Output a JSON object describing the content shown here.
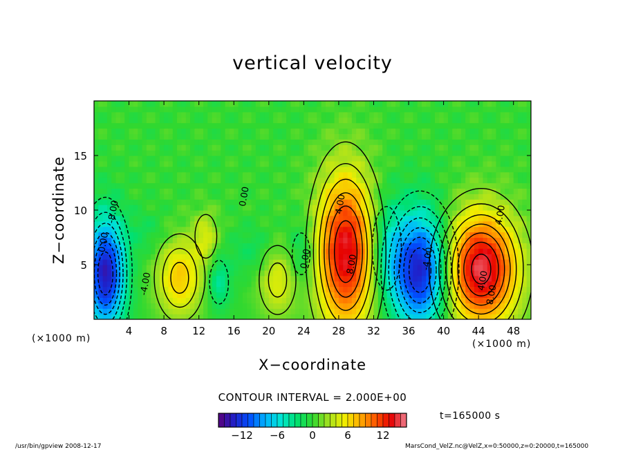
{
  "chart_data": {
    "type": "heatmap",
    "title": "vertical velocity",
    "xlabel": "X−coordinate",
    "ylabel": "Z−coordinate",
    "x_unit_label": "(×1000 m)",
    "x_ticks": [
      4,
      8,
      12,
      16,
      20,
      24,
      28,
      32,
      36,
      40,
      44,
      48
    ],
    "y_ticks": [
      5,
      10,
      15
    ],
    "xlim": [
      0,
      50
    ],
    "ylim": [
      0,
      20
    ],
    "contour_interval_text": "CONTOUR INTERVAL = 2.000E+00",
    "contour_labels": [
      "0.00",
      "0.00",
      "0.00",
      "4.00",
      "4.00",
      "4.00",
      "8.00",
      "8.00",
      "-4.00",
      "-8.00",
      "-4.00"
    ],
    "colorbar": {
      "range": [
        -16,
        16
      ],
      "ticks": [
        -12,
        -6,
        0,
        6,
        12
      ],
      "colors": [
        "#5a007a",
        "#2020c8",
        "#0050ff",
        "#00b4ff",
        "#00e6d2",
        "#00e070",
        "#30d830",
        "#a0e020",
        "#f0f000",
        "#ffb000",
        "#ff5a00",
        "#e60000",
        "#f08090"
      ]
    },
    "cells": [
      {
        "x": 1.3,
        "z": 4.2,
        "rx": 2.2,
        "rz": 5.0,
        "w": -14
      },
      {
        "x": 9.8,
        "z": 3.8,
        "rx": 2.6,
        "rz": 3.6,
        "w": 7
      },
      {
        "x": 12.8,
        "z": 7.6,
        "rx": 1.5,
        "rz": 2.4,
        "w": 4
      },
      {
        "x": 14.3,
        "z": 3.4,
        "rx": 1.3,
        "rz": 2.4,
        "w": -4
      },
      {
        "x": 21.0,
        "z": 3.6,
        "rx": 2.2,
        "rz": 3.3,
        "w": 5
      },
      {
        "x": 18.5,
        "z": 6.2,
        "rx": 2.8,
        "rz": 2.2,
        "w": -2
      },
      {
        "x": 23.7,
        "z": 6.0,
        "rx": 1.6,
        "rz": 3.0,
        "w": -3
      },
      {
        "x": 28.8,
        "z": 6.2,
        "rx": 3.3,
        "rz": 7.2,
        "w": 14
      },
      {
        "x": 33.5,
        "z": 6.5,
        "rx": 2.0,
        "rz": 4.6,
        "w": -4
      },
      {
        "x": 37.3,
        "z": 4.5,
        "rx": 3.2,
        "rz": 5.2,
        "w": -14
      },
      {
        "x": 44.3,
        "z": 4.6,
        "rx": 4.2,
        "rz": 5.2,
        "w": 15
      },
      {
        "x": 6.0,
        "z": 8.0,
        "rx": 2.5,
        "rz": 2.0,
        "w": -1.5
      }
    ],
    "time_label": "t=165000 s"
  },
  "footer": {
    "left": "/usr/bin/gpview   2008-12-17",
    "right": "MarsCond_VelZ.nc@VelZ,x=0:50000,z=0:20000,t=165000"
  }
}
